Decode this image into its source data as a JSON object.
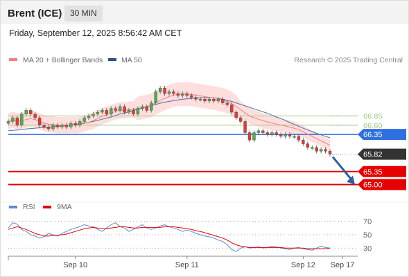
{
  "header": {
    "title": "Brent (ICE)",
    "interval": "30 MIN"
  },
  "datetime": "Friday, September 12, 2025 8:56:42 AM CET",
  "credit": "Research © 2025 Trading Central",
  "colors": {
    "price_level_red": "#e60000",
    "pivot_blue": "#2f6fe0",
    "green_level": "#9ccc7a",
    "bollinger_fill": "#ffd6d6",
    "ma20": "#f08080",
    "ma50": "#4a6fa5",
    "candle_up": "#4caf50",
    "candle_down": "#e53935",
    "arrow": "#2a5fa8",
    "rsi": "#5b8ad6",
    "rsi_ma": "#e60000",
    "last_price_tag": "#333333"
  },
  "chart_data": [
    {
      "type": "line",
      "title": "",
      "legend": [
        {
          "name": "MA 20 + Bollinger Bands",
          "color": "#f08080"
        },
        {
          "name": "MA 50",
          "color": "#2f4f8f"
        }
      ],
      "legend_placement": "top-left",
      "x_ticks": [
        "Sep 10",
        "Sep 11",
        "Sep 12",
        "Sep 17"
      ],
      "ylim": [
        64.6,
        68.2
      ],
      "price_close": [
        66.7,
        66.8,
        66.6,
        66.9,
        67.0,
        66.9,
        66.8,
        66.6,
        66.55,
        66.5,
        66.6,
        66.55,
        66.6,
        66.55,
        66.65,
        66.6,
        66.7,
        66.8,
        66.85,
        66.9,
        66.95,
        67.0,
        66.9,
        67.05,
        67.0,
        67.1,
        66.95,
        67.0,
        66.9,
        67.05,
        67.1,
        67.0,
        67.2,
        67.5,
        67.6,
        67.45,
        67.5,
        67.45,
        67.4,
        67.45,
        67.4,
        67.35,
        67.3,
        67.3,
        67.25,
        67.3,
        67.25,
        67.3,
        67.2,
        67.15,
        66.95,
        66.8,
        66.7,
        66.4,
        66.2,
        66.4,
        66.45,
        66.4,
        66.35,
        66.4,
        66.35,
        66.3,
        66.35,
        66.3,
        66.3,
        66.2,
        66.1,
        66.0,
        66.0,
        65.9,
        65.95,
        65.9,
        65.82
      ],
      "ma20": [
        66.7,
        66.75,
        66.7,
        66.72,
        66.75,
        66.78,
        66.75,
        66.7,
        66.66,
        66.63,
        66.62,
        66.6,
        66.6,
        66.6,
        66.61,
        66.6,
        66.62,
        66.65,
        66.68,
        66.72,
        66.78,
        66.84,
        66.88,
        66.93,
        66.97,
        67.0,
        67.0,
        67.02,
        67.03,
        67.05,
        67.08,
        67.1,
        67.14,
        67.2,
        67.27,
        67.32,
        67.37,
        67.41,
        67.43,
        67.44,
        67.44,
        67.43,
        67.41,
        67.39,
        67.37,
        67.35,
        67.33,
        67.31,
        67.28,
        67.24,
        67.18,
        67.1,
        67.02,
        66.93,
        66.85,
        66.8,
        66.76,
        66.72,
        66.69,
        66.66,
        66.63,
        66.6,
        66.58,
        66.55,
        66.52,
        66.48,
        66.42,
        66.36,
        66.3,
        66.24,
        66.18,
        66.12,
        66.06
      ],
      "ma50": [
        66.45,
        66.46,
        66.47,
        66.48,
        66.5,
        66.51,
        66.52,
        66.53,
        66.54,
        66.55,
        66.56,
        66.57,
        66.58,
        66.59,
        66.6,
        66.62,
        66.64,
        66.66,
        66.68,
        66.7,
        66.73,
        66.76,
        66.79,
        66.82,
        66.86,
        66.9,
        66.93,
        66.96,
        67.0,
        67.03,
        67.06,
        67.1,
        67.13,
        67.16,
        67.19,
        67.22,
        67.24,
        67.26,
        67.28,
        67.3,
        67.31,
        67.32,
        67.33,
        67.34,
        67.34,
        67.34,
        67.33,
        67.32,
        67.3,
        67.27,
        67.24,
        67.2,
        67.16,
        67.12,
        67.08,
        67.04,
        67.0,
        66.96,
        66.92,
        66.87,
        66.82,
        66.78,
        66.73,
        66.67,
        66.62,
        66.57,
        66.52,
        66.47,
        66.43,
        66.38,
        66.34,
        66.3,
        66.26
      ],
      "levels": [
        {
          "label": "66.85",
          "value": 66.85,
          "style": "green"
        },
        {
          "label": "66.60",
          "value": 66.6,
          "style": "green"
        },
        {
          "label": "66.35",
          "value": 66.35,
          "style": "pivot"
        },
        {
          "label": "65.82",
          "value": 65.82,
          "style": "last"
        },
        {
          "label": "65.35",
          "value": 65.35,
          "style": "red"
        },
        {
          "label": "65.00",
          "value": 65.0,
          "style": "red"
        }
      ],
      "projection_target": 65.0
    },
    {
      "type": "line",
      "title": "",
      "legend": [
        {
          "name": "RSI",
          "color": "#5b8ad6"
        },
        {
          "name": "9MA",
          "color": "#e60000"
        }
      ],
      "legend_placement": "top-left",
      "ylim": [
        20,
        80
      ],
      "y_ticks": [
        "70",
        "50",
        "30"
      ],
      "rsi": [
        60,
        68,
        66,
        58,
        55,
        50,
        48,
        45,
        47,
        52,
        50,
        48,
        52,
        55,
        58,
        60,
        62,
        65,
        63,
        62,
        58,
        55,
        60,
        65,
        68,
        62,
        60,
        55,
        58,
        62,
        65,
        60,
        58,
        60,
        63,
        65,
        62,
        60,
        58,
        55,
        57,
        55,
        52,
        50,
        48,
        47,
        45,
        42,
        40,
        35,
        28,
        25,
        30,
        32,
        30,
        31,
        32,
        30,
        31,
        33,
        32,
        30,
        29,
        28,
        30,
        31,
        29,
        28,
        27,
        30,
        33,
        31,
        30
      ],
      "rsi_ma": [
        58,
        60,
        62,
        60,
        58,
        55,
        52,
        50,
        48,
        48,
        49,
        49,
        50,
        51,
        53,
        55,
        57,
        59,
        60,
        61,
        60,
        59,
        59,
        60,
        61,
        62,
        62,
        61,
        60,
        60,
        61,
        61,
        61,
        61,
        61,
        62,
        62,
        62,
        61,
        60,
        59,
        58,
        56,
        55,
        53,
        51,
        49,
        47,
        45,
        42,
        38,
        35,
        33,
        32,
        31,
        31,
        31,
        31,
        31,
        31,
        31,
        31,
        30,
        30,
        30,
        30,
        30,
        29,
        29,
        29,
        29,
        29,
        30
      ]
    }
  ]
}
